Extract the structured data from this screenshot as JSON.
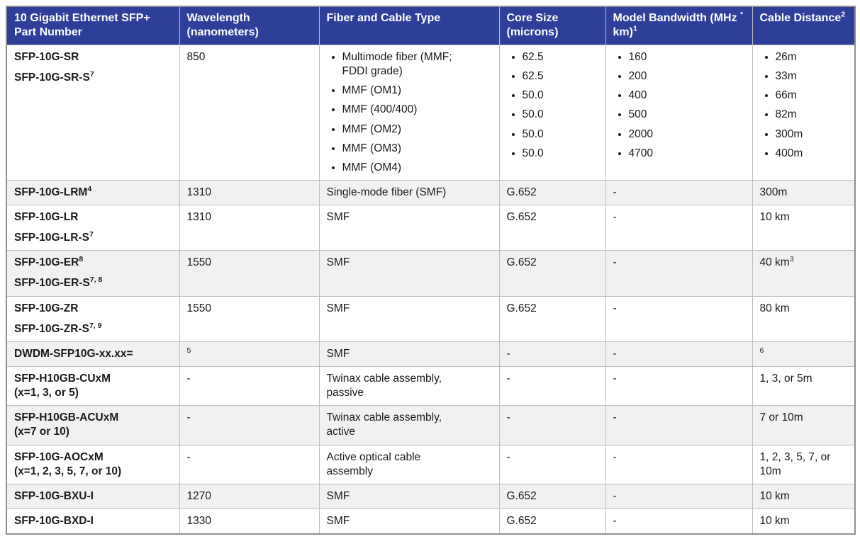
{
  "colors": {
    "header_bg": "#2e3f9a",
    "header_text": "#ffffff",
    "row_alt": "#f1f1f1",
    "grid": "#bdbdbd",
    "frame": "#8f8f8f",
    "text": "#1a1a1a"
  },
  "table": {
    "header": [
      {
        "segs": [
          {
            "t": "10 Gigabit Ethernet SFP+ Part Number"
          }
        ]
      },
      {
        "segs": [
          {
            "t": "Wavelength (nanometers)"
          }
        ]
      },
      {
        "segs": [
          {
            "t": "Fiber and Cable Type"
          }
        ]
      },
      {
        "segs": [
          {
            "t": "Core Size (microns)"
          }
        ]
      },
      {
        "segs": [
          {
            "t": "Model Bandwidth (MHz "
          },
          {
            "s": "*"
          },
          {
            "t": " km)"
          },
          {
            "s": "1"
          }
        ]
      },
      {
        "segs": [
          {
            "t": "Cable Distance"
          },
          {
            "s": "2"
          }
        ]
      }
    ],
    "rows": [
      {
        "part_lines": [
          {
            "segs": [
              {
                "t": "SFP-10G-SR"
              }
            ],
            "tight": false
          },
          {
            "segs": [
              {
                "t": "SFP-10G-SR-S"
              },
              {
                "s": "7"
              }
            ],
            "tight": false
          }
        ],
        "cells": {
          "wavelength": {
            "segs": [
              {
                "t": "850"
              }
            ]
          },
          "fiber": {
            "bullets": [
              [
                {
                  "t": "Multimode fiber (MMF; FDDI grade)"
                }
              ],
              [
                {
                  "t": "MMF (OM1)"
                }
              ],
              [
                {
                  "t": "MMF (400/400)"
                }
              ],
              [
                {
                  "t": "MMF (OM2)"
                }
              ],
              [
                {
                  "t": "MMF (OM3)"
                }
              ],
              [
                {
                  "t": "MMF (OM4)"
                }
              ]
            ]
          },
          "core_size": {
            "bullets": [
              [
                {
                  "t": "62.5"
                }
              ],
              [
                {
                  "t": "62.5"
                }
              ],
              [
                {
                  "t": "50.0"
                }
              ],
              [
                {
                  "t": "50.0"
                }
              ],
              [
                {
                  "t": "50.0"
                }
              ],
              [
                {
                  "t": "50.0"
                }
              ]
            ]
          },
          "bandwidth": {
            "bullets": [
              [
                {
                  "t": "160"
                }
              ],
              [
                {
                  "t": "200"
                }
              ],
              [
                {
                  "t": "400"
                }
              ],
              [
                {
                  "t": "500"
                }
              ],
              [
                {
                  "t": "2000"
                }
              ],
              [
                {
                  "t": "4700"
                }
              ]
            ]
          },
          "distance": {
            "bullets": [
              [
                {
                  "t": "26m"
                }
              ],
              [
                {
                  "t": "33m"
                }
              ],
              [
                {
                  "t": "66m"
                }
              ],
              [
                {
                  "t": "82m"
                }
              ],
              [
                {
                  "t": "300m"
                }
              ],
              [
                {
                  "t": "400m"
                }
              ]
            ]
          }
        }
      },
      {
        "part_lines": [
          {
            "segs": [
              {
                "t": "SFP-10G-LRM"
              },
              {
                "s": "4"
              }
            ],
            "tight": false
          }
        ],
        "cells": {
          "wavelength": {
            "segs": [
              {
                "t": "1310"
              }
            ]
          },
          "fiber": {
            "segs": [
              {
                "t": "Single-mode fiber (SMF)"
              }
            ]
          },
          "core_size": {
            "segs": [
              {
                "t": "G.652"
              }
            ]
          },
          "bandwidth": {
            "segs": [
              {
                "t": "-"
              }
            ]
          },
          "distance": {
            "segs": [
              {
                "t": "300m"
              }
            ]
          }
        }
      },
      {
        "part_lines": [
          {
            "segs": [
              {
                "t": "SFP-10G-LR"
              }
            ],
            "tight": false
          },
          {
            "segs": [
              {
                "t": "SFP-10G-LR-S"
              },
              {
                "s": "7"
              }
            ],
            "tight": false
          }
        ],
        "cells": {
          "wavelength": {
            "segs": [
              {
                "t": "1310"
              }
            ]
          },
          "fiber": {
            "segs": [
              {
                "t": "SMF"
              }
            ]
          },
          "core_size": {
            "segs": [
              {
                "t": "G.652"
              }
            ]
          },
          "bandwidth": {
            "segs": [
              {
                "t": "-"
              }
            ]
          },
          "distance": {
            "segs": [
              {
                "t": "10 km"
              }
            ]
          }
        }
      },
      {
        "part_lines": [
          {
            "segs": [
              {
                "t": "SFP-10G-ER"
              },
              {
                "s": "8"
              }
            ],
            "tight": false
          },
          {
            "segs": [
              {
                "t": "SFP-10G-ER-S"
              },
              {
                "s": "7, 8"
              }
            ],
            "tight": false
          }
        ],
        "cells": {
          "wavelength": {
            "segs": [
              {
                "t": "1550"
              }
            ]
          },
          "fiber": {
            "segs": [
              {
                "t": "SMF"
              }
            ]
          },
          "core_size": {
            "segs": [
              {
                "t": "G.652"
              }
            ]
          },
          "bandwidth": {
            "segs": [
              {
                "t": "-"
              }
            ]
          },
          "distance": {
            "segs": [
              {
                "t": "40 km"
              },
              {
                "s": "3"
              }
            ]
          }
        }
      },
      {
        "part_lines": [
          {
            "segs": [
              {
                "t": "SFP-10G-ZR"
              }
            ],
            "tight": false
          },
          {
            "segs": [
              {
                "t": "SFP-10G-ZR-S"
              },
              {
                "s": "7, 9"
              }
            ],
            "tight": false
          }
        ],
        "cells": {
          "wavelength": {
            "segs": [
              {
                "t": "1550"
              }
            ]
          },
          "fiber": {
            "segs": [
              {
                "t": "SMF"
              }
            ]
          },
          "core_size": {
            "segs": [
              {
                "t": "G.652"
              }
            ]
          },
          "bandwidth": {
            "segs": [
              {
                "t": "-"
              }
            ]
          },
          "distance": {
            "segs": [
              {
                "t": "80 km"
              }
            ]
          }
        }
      },
      {
        "part_lines": [
          {
            "segs": [
              {
                "t": "DWDM-SFP10G-xx.xx="
              }
            ],
            "tight": false
          }
        ],
        "cells": {
          "wavelength": {
            "segs": [
              {
                "s": "5"
              }
            ]
          },
          "fiber": {
            "segs": [
              {
                "t": "SMF"
              }
            ]
          },
          "core_size": {
            "segs": [
              {
                "t": "-"
              }
            ]
          },
          "bandwidth": {
            "segs": [
              {
                "t": "-"
              }
            ]
          },
          "distance": {
            "segs": [
              {
                "s": "6"
              }
            ]
          }
        }
      },
      {
        "part_lines": [
          {
            "segs": [
              {
                "t": "SFP-H10GB-CUxM"
              }
            ],
            "tight": false
          },
          {
            "segs": [
              {
                "t": "(x=1, 3, or 5)"
              }
            ],
            "tight": true
          }
        ],
        "cells": {
          "wavelength": {
            "segs": [
              {
                "t": "-"
              }
            ]
          },
          "fiber": {
            "segs": [
              {
                "t": "Twinax cable assembly, passive"
              }
            ]
          },
          "core_size": {
            "segs": [
              {
                "t": "-"
              }
            ]
          },
          "bandwidth": {
            "segs": [
              {
                "t": "-"
              }
            ]
          },
          "distance": {
            "segs": [
              {
                "t": "1, 3, or 5m"
              }
            ]
          }
        }
      },
      {
        "part_lines": [
          {
            "segs": [
              {
                "t": "SFP-H10GB-ACUxM"
              }
            ],
            "tight": false
          },
          {
            "segs": [
              {
                "t": "(x=7 or 10)"
              }
            ],
            "tight": true
          }
        ],
        "cells": {
          "wavelength": {
            "segs": [
              {
                "t": "-"
              }
            ]
          },
          "fiber": {
            "segs": [
              {
                "t": "Twinax cable assembly, active"
              }
            ]
          },
          "core_size": {
            "segs": [
              {
                "t": "-"
              }
            ]
          },
          "bandwidth": {
            "segs": [
              {
                "t": "-"
              }
            ]
          },
          "distance": {
            "segs": [
              {
                "t": "7 or 10m"
              }
            ]
          }
        }
      },
      {
        "part_lines": [
          {
            "segs": [
              {
                "t": "SFP-10G-AOCxM"
              }
            ],
            "tight": false
          },
          {
            "segs": [
              {
                "t": "(x=1, 2, 3, 5, 7, or 10)"
              }
            ],
            "tight": true
          }
        ],
        "cells": {
          "wavelength": {
            "segs": [
              {
                "t": "-"
              }
            ]
          },
          "fiber": {
            "segs": [
              {
                "t": "Active optical cable assembly"
              }
            ]
          },
          "core_size": {
            "segs": [
              {
                "t": "-"
              }
            ]
          },
          "bandwidth": {
            "segs": [
              {
                "t": "-"
              }
            ]
          },
          "distance": {
            "segs": [
              {
                "t": "1, 2, 3, 5, 7, or 10m"
              }
            ]
          }
        }
      },
      {
        "part_lines": [
          {
            "segs": [
              {
                "t": "SFP-10G-BXU-I"
              }
            ],
            "tight": false
          }
        ],
        "cells": {
          "wavelength": {
            "segs": [
              {
                "t": "1270"
              }
            ]
          },
          "fiber": {
            "segs": [
              {
                "t": "SMF"
              }
            ]
          },
          "core_size": {
            "segs": [
              {
                "t": "G.652"
              }
            ]
          },
          "bandwidth": {
            "segs": [
              {
                "t": "-"
              }
            ]
          },
          "distance": {
            "segs": [
              {
                "t": "10 km"
              }
            ]
          }
        }
      },
      {
        "part_lines": [
          {
            "segs": [
              {
                "t": "SFP-10G-BXD-I"
              }
            ],
            "tight": false
          }
        ],
        "cells": {
          "wavelength": {
            "segs": [
              {
                "t": "1330"
              }
            ]
          },
          "fiber": {
            "segs": [
              {
                "t": "SMF"
              }
            ]
          },
          "core_size": {
            "segs": [
              {
                "t": "G.652"
              }
            ]
          },
          "bandwidth": {
            "segs": [
              {
                "t": "-"
              }
            ]
          },
          "distance": {
            "segs": [
              {
                "t": "10 km"
              }
            ]
          }
        }
      }
    ]
  }
}
